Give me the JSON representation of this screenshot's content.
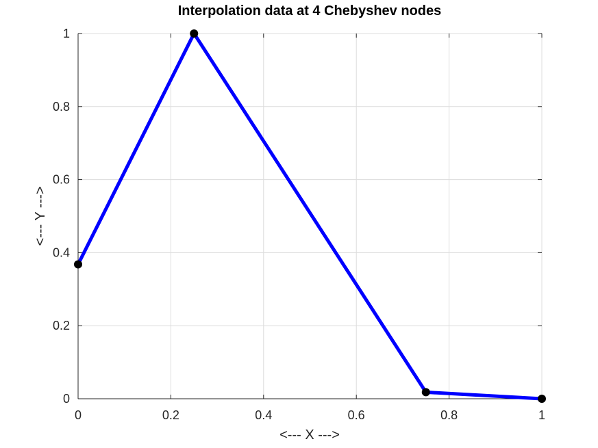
{
  "chart_data": {
    "type": "line",
    "title": "Interpolation data at 4 Chebyshev nodes",
    "xlabel": "<--- X --->",
    "ylabel": "<--- Y --->",
    "xlim": [
      0,
      1
    ],
    "ylim": [
      0,
      1
    ],
    "xticks": [
      0,
      0.2,
      0.4,
      0.6,
      0.8,
      1
    ],
    "yticks": [
      0,
      0.2,
      0.4,
      0.6,
      0.8,
      1
    ],
    "xtick_labels": [
      "0",
      "0.2",
      "0.4",
      "0.6",
      "0.8",
      "1"
    ],
    "ytick_labels": [
      "0",
      "0.2",
      "0.4",
      "0.6",
      "0.8",
      "1"
    ],
    "grid": true,
    "series": [
      {
        "x": [
          0,
          0.25,
          0.75,
          1
        ],
        "y": [
          0.368,
          1,
          0.018,
          0
        ],
        "line_color": "#0000ff",
        "marker_color": "#000000"
      }
    ]
  }
}
